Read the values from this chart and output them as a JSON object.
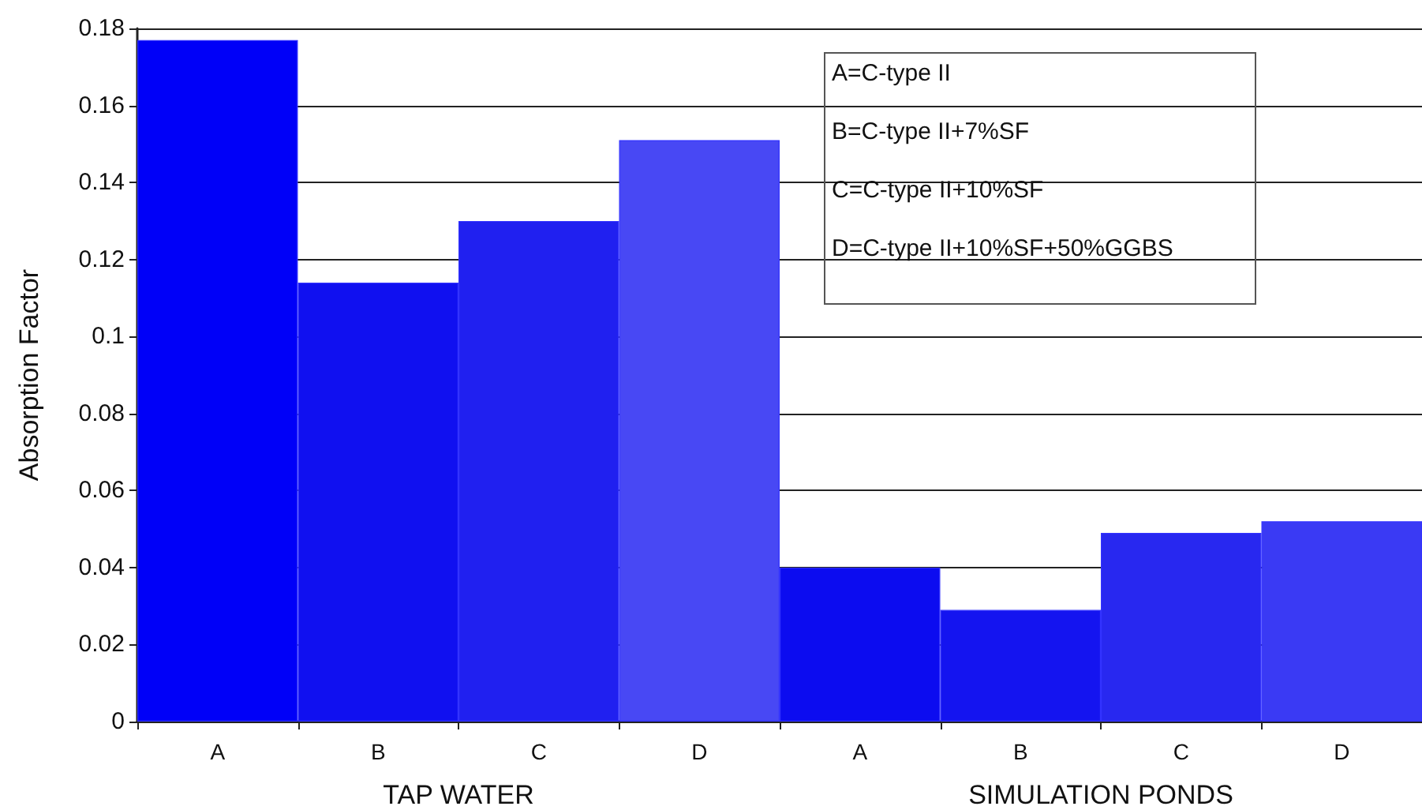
{
  "chart_data": {
    "type": "bar",
    "ylabel": "Absorption Factor",
    "categories": [
      "A",
      "B",
      "C",
      "D",
      "A",
      "B",
      "C",
      "D"
    ],
    "values": [
      0.177,
      0.114,
      0.13,
      0.151,
      0.04,
      0.029,
      0.049,
      0.052
    ],
    "colors": [
      "#0000f8",
      "#1010f0",
      "#2020f0",
      "#4848f4",
      "#0c0cf0",
      "#1414f0",
      "#2828f0",
      "#3a3af4"
    ],
    "ylim": [
      0,
      0.18
    ],
    "yticks": [
      0,
      0.02,
      0.04,
      0.06,
      0.08,
      0.1,
      0.12,
      0.14,
      0.16,
      0.18
    ],
    "grid": "y",
    "annotations": [
      "A=C-type II",
      "B=C-type II+7%SF",
      "C=C-type II+10%SF",
      "D=C-type II+10%SF+50%GGBS",
      "TAP WATER",
      "SIMULATION PONDS"
    ]
  }
}
